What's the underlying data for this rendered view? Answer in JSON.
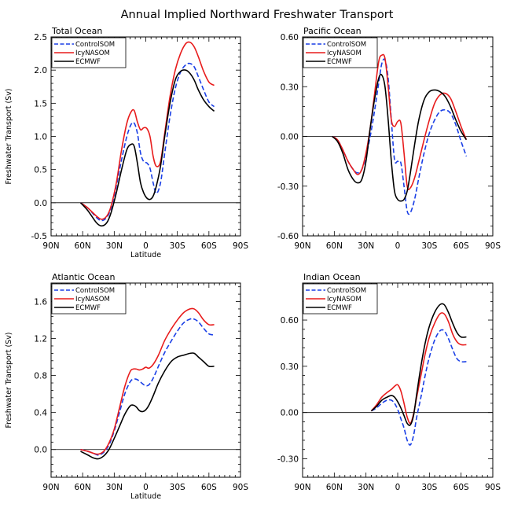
{
  "title": "Annual Implied Northward Freshwater Transport",
  "colors": {
    "ControlSOM": "#1a3fe6",
    "IcyNASOM": "#e81c1c",
    "ECMWF": "#000000"
  },
  "chart_data": [
    {
      "type": "line",
      "title": "Total Ocean",
      "xlabel": "Latitude",
      "ylabel": "Freshwater Transport (Sv)",
      "xlim": [
        90,
        -90
      ],
      "ylim": [
        -0.5,
        2.5
      ],
      "x_ticks": [
        90,
        60,
        30,
        0,
        -30,
        -60,
        -90
      ],
      "x_tick_labels": [
        "90N",
        "60N",
        "30N",
        "0",
        "30S",
        "60S",
        "90S"
      ],
      "y_ticks": [
        -0.5,
        0.0,
        0.5,
        1.0,
        1.5,
        2.0,
        2.5
      ],
      "y_tick_labels": [
        "-0.5",
        "0.0",
        "0.5",
        "1.0",
        "1.5",
        "2.0",
        "2.5"
      ],
      "legend": [
        "ControlSOM",
        "IcyNASOM",
        "ECMWF"
      ],
      "series": [
        {
          "name": "ControlSOM",
          "x": [
            62,
            55,
            47,
            42,
            37,
            33,
            28,
            23,
            18,
            14,
            11,
            8,
            5,
            2,
            -1,
            -4,
            -7,
            -10,
            -14,
            -18,
            -23,
            -28,
            -33,
            -38,
            -42,
            -46,
            -50,
            -55,
            -60,
            -65
          ],
          "y": [
            0.0,
            -0.08,
            -0.22,
            -0.27,
            -0.22,
            -0.08,
            0.25,
            0.65,
            1.0,
            1.18,
            1.2,
            1.05,
            0.75,
            0.62,
            0.6,
            0.52,
            0.3,
            0.14,
            0.3,
            0.75,
            1.3,
            1.72,
            1.97,
            2.08,
            2.1,
            2.05,
            1.9,
            1.7,
            1.52,
            1.45
          ]
        },
        {
          "name": "IcyNASOM",
          "x": [
            62,
            55,
            47,
            42,
            37,
            33,
            28,
            23,
            18,
            14,
            11,
            8,
            5,
            2,
            -1,
            -4,
            -7,
            -10,
            -14,
            -18,
            -23,
            -28,
            -33,
            -38,
            -42,
            -46,
            -50,
            -55,
            -60,
            -65
          ],
          "y": [
            0.0,
            -0.08,
            -0.2,
            -0.25,
            -0.2,
            -0.05,
            0.3,
            0.8,
            1.2,
            1.37,
            1.39,
            1.22,
            1.1,
            1.13,
            1.12,
            1.0,
            0.7,
            0.55,
            0.62,
            1.05,
            1.6,
            2.0,
            2.25,
            2.4,
            2.42,
            2.35,
            2.2,
            1.98,
            1.82,
            1.77
          ]
        },
        {
          "name": "ECMWF",
          "x": [
            62,
            55,
            47,
            42,
            37,
            33,
            28,
            23,
            18,
            14,
            11,
            8,
            5,
            2,
            -1,
            -4,
            -7,
            -10,
            -14,
            -18,
            -23,
            -28,
            -33,
            -38,
            -42,
            -46,
            -50,
            -55,
            -60,
            -65
          ],
          "y": [
            0.0,
            -0.12,
            -0.3,
            -0.35,
            -0.3,
            -0.15,
            0.15,
            0.5,
            0.8,
            0.88,
            0.85,
            0.6,
            0.3,
            0.15,
            0.07,
            0.05,
            0.1,
            0.25,
            0.55,
            1.0,
            1.5,
            1.85,
            1.98,
            2.0,
            1.95,
            1.85,
            1.7,
            1.55,
            1.45,
            1.38
          ]
        }
      ]
    },
    {
      "type": "line",
      "title": "Pacific Ocean",
      "xlabel": "",
      "ylabel": "",
      "xlim": [
        90,
        -90
      ],
      "ylim": [
        -0.6,
        0.6
      ],
      "x_ticks": [
        90,
        60,
        30,
        0,
        -30,
        -60,
        -90
      ],
      "x_tick_labels": [
        "90N",
        "60N",
        "30N",
        "0",
        "30S",
        "60S",
        "90S"
      ],
      "y_ticks": [
        -0.6,
        -0.3,
        0.0,
        0.3,
        0.6
      ],
      "y_tick_labels": [
        "-0.60",
        "-0.30",
        "0.00",
        "0.30",
        "0.60"
      ],
      "legend": [
        "ControlSOM",
        "IcyNASOM",
        "ECMWF"
      ],
      "series": [
        {
          "name": "ControlSOM",
          "x": [
            62,
            57,
            52,
            47,
            42,
            38,
            34,
            30,
            26,
            22,
            18,
            15,
            12,
            9,
            6,
            3,
            0,
            -3,
            -6,
            -9,
            -12,
            -16,
            -20,
            -25,
            -30,
            -35,
            -40,
            -45,
            -50,
            -55,
            -60,
            -65
          ],
          "y": [
            0.0,
            -0.02,
            -0.08,
            -0.15,
            -0.2,
            -0.22,
            -0.2,
            -0.12,
            0.0,
            0.15,
            0.32,
            0.44,
            0.46,
            0.35,
            0.1,
            -0.14,
            -0.15,
            -0.16,
            -0.3,
            -0.45,
            -0.46,
            -0.38,
            -0.25,
            -0.1,
            0.02,
            0.1,
            0.15,
            0.16,
            0.14,
            0.07,
            -0.03,
            -0.12
          ]
        },
        {
          "name": "IcyNASOM",
          "x": [
            62,
            57,
            52,
            47,
            42,
            38,
            34,
            30,
            26,
            22,
            18,
            15,
            12,
            9,
            6,
            3,
            0,
            -3,
            -6,
            -9,
            -12,
            -16,
            -20,
            -25,
            -30,
            -35,
            -40,
            -45,
            -50,
            -55,
            -60,
            -65
          ],
          "y": [
            0.0,
            -0.02,
            -0.08,
            -0.15,
            -0.2,
            -0.23,
            -0.2,
            -0.1,
            0.05,
            0.25,
            0.45,
            0.49,
            0.47,
            0.3,
            0.1,
            0.06,
            0.09,
            0.08,
            -0.1,
            -0.3,
            -0.31,
            -0.25,
            -0.15,
            -0.02,
            0.1,
            0.2,
            0.25,
            0.26,
            0.23,
            0.15,
            0.06,
            -0.02
          ]
        },
        {
          "name": "ECMWF",
          "x": [
            62,
            57,
            52,
            47,
            42,
            38,
            34,
            30,
            26,
            22,
            18,
            15,
            12,
            9,
            6,
            3,
            0,
            -3,
            -6,
            -9,
            -12,
            -16,
            -20,
            -25,
            -30,
            -35,
            -40,
            -45,
            -50,
            -55,
            -60,
            -65
          ],
          "y": [
            0.0,
            -0.03,
            -0.1,
            -0.2,
            -0.26,
            -0.28,
            -0.26,
            -0.15,
            0.05,
            0.22,
            0.35,
            0.37,
            0.3,
            0.1,
            -0.15,
            -0.33,
            -0.38,
            -0.39,
            -0.38,
            -0.33,
            -0.22,
            -0.05,
            0.1,
            0.22,
            0.27,
            0.28,
            0.27,
            0.24,
            0.18,
            0.1,
            0.03,
            -0.02
          ]
        }
      ]
    },
    {
      "type": "line",
      "title": "Atlantic Ocean",
      "xlabel": "Latitude",
      "ylabel": "Freshwater Transport (Sv)",
      "xlim": [
        90,
        -90
      ],
      "ylim": [
        -0.3,
        1.8
      ],
      "x_ticks": [
        90,
        60,
        30,
        0,
        -30,
        -60,
        -90
      ],
      "x_tick_labels": [
        "90N",
        "60N",
        "30N",
        "0",
        "30S",
        "60S",
        "90S"
      ],
      "y_ticks": [
        0.0,
        0.4,
        0.8,
        1.2,
        1.6
      ],
      "y_tick_labels": [
        "0.0",
        "0.4",
        "0.8",
        "1.2",
        "1.6"
      ],
      "legend": [
        "ControlSOM",
        "IcyNASOM",
        "ECMWF"
      ],
      "series": [
        {
          "name": "ControlSOM",
          "x": [
            62,
            55,
            50,
            45,
            40,
            35,
            30,
            25,
            20,
            15,
            12,
            9,
            6,
            3,
            0,
            -3,
            -7,
            -12,
            -18,
            -24,
            -30,
            -36,
            -42,
            -46,
            -50,
            -55,
            -60,
            -65
          ],
          "y": [
            0.0,
            -0.02,
            -0.04,
            -0.06,
            -0.03,
            0.05,
            0.2,
            0.4,
            0.6,
            0.73,
            0.76,
            0.76,
            0.74,
            0.71,
            0.69,
            0.7,
            0.77,
            0.9,
            1.05,
            1.17,
            1.28,
            1.37,
            1.41,
            1.41,
            1.38,
            1.31,
            1.25,
            1.24
          ]
        },
        {
          "name": "IcyNASOM",
          "x": [
            62,
            55,
            50,
            45,
            40,
            35,
            30,
            25,
            20,
            15,
            12,
            9,
            6,
            3,
            0,
            -3,
            -7,
            -12,
            -18,
            -24,
            -30,
            -36,
            -42,
            -46,
            -50,
            -55,
            -60,
            -65
          ],
          "y": [
            0.0,
            -0.02,
            -0.04,
            -0.05,
            -0.02,
            0.07,
            0.22,
            0.45,
            0.68,
            0.84,
            0.87,
            0.87,
            0.86,
            0.87,
            0.89,
            0.88,
            0.92,
            1.02,
            1.18,
            1.3,
            1.4,
            1.48,
            1.52,
            1.52,
            1.48,
            1.4,
            1.35,
            1.35
          ]
        },
        {
          "name": "ECMWF",
          "x": [
            62,
            55,
            50,
            45,
            40,
            35,
            30,
            25,
            20,
            15,
            12,
            9,
            6,
            3,
            0,
            -3,
            -7,
            -12,
            -18,
            -24,
            -30,
            -36,
            -42,
            -46,
            -50,
            -55,
            -60,
            -65
          ],
          "y": [
            -0.02,
            -0.06,
            -0.09,
            -0.1,
            -0.07,
            0.0,
            0.12,
            0.25,
            0.38,
            0.47,
            0.48,
            0.46,
            0.42,
            0.41,
            0.43,
            0.48,
            0.58,
            0.72,
            0.85,
            0.95,
            1.0,
            1.02,
            1.04,
            1.04,
            1.0,
            0.95,
            0.9,
            0.9
          ]
        }
      ]
    },
    {
      "type": "line",
      "title": "Indian Ocean",
      "xlabel": "",
      "ylabel": "",
      "xlim": [
        90,
        -90
      ],
      "ylim": [
        -0.42,
        0.84
      ],
      "x_ticks": [
        90,
        60,
        30,
        0,
        -30,
        -60,
        -90
      ],
      "x_tick_labels": [
        "90N",
        "60N",
        "30N",
        "0",
        "30S",
        "60S",
        "90S"
      ],
      "y_ticks": [
        -0.3,
        0.0,
        0.3,
        0.6
      ],
      "y_tick_labels": [
        "-0.30",
        "0.00",
        "0.30",
        "0.60"
      ],
      "legend": [
        "ControlSOM",
        "IcyNASOM",
        "ECMWF"
      ],
      "series": [
        {
          "name": "ControlSOM",
          "x": [
            25,
            20,
            15,
            10,
            6,
            3,
            0,
            -3,
            -6,
            -9,
            -12,
            -15,
            -18,
            -22,
            -26,
            -30,
            -35,
            -40,
            -44,
            -48,
            -52,
            -56,
            -60,
            -65
          ],
          "y": [
            0.01,
            0.03,
            0.06,
            0.08,
            0.08,
            0.06,
            0.02,
            -0.04,
            -0.1,
            -0.18,
            -0.21,
            -0.15,
            -0.03,
            0.1,
            0.24,
            0.36,
            0.47,
            0.53,
            0.53,
            0.48,
            0.41,
            0.35,
            0.33,
            0.33
          ]
        },
        {
          "name": "IcyNASOM",
          "x": [
            25,
            20,
            15,
            10,
            6,
            3,
            0,
            -3,
            -6,
            -9,
            -12,
            -15,
            -18,
            -22,
            -26,
            -30,
            -35,
            -40,
            -44,
            -48,
            -52,
            -56,
            -60,
            -65
          ],
          "y": [
            0.01,
            0.05,
            0.1,
            0.13,
            0.15,
            0.17,
            0.18,
            0.14,
            0.06,
            -0.03,
            -0.07,
            -0.01,
            0.1,
            0.24,
            0.38,
            0.49,
            0.58,
            0.64,
            0.64,
            0.59,
            0.51,
            0.46,
            0.44,
            0.44
          ]
        },
        {
          "name": "ECMWF",
          "x": [
            25,
            20,
            15,
            10,
            6,
            3,
            0,
            -3,
            -6,
            -9,
            -12,
            -15,
            -18,
            -22,
            -26,
            -30,
            -35,
            -40,
            -44,
            -48,
            -52,
            -56,
            -60,
            -65
          ],
          "y": [
            0.01,
            0.04,
            0.08,
            0.1,
            0.11,
            0.1,
            0.07,
            0.03,
            -0.02,
            -0.07,
            -0.08,
            -0.02,
            0.12,
            0.3,
            0.45,
            0.56,
            0.65,
            0.7,
            0.7,
            0.65,
            0.58,
            0.52,
            0.49,
            0.49
          ]
        }
      ]
    }
  ]
}
